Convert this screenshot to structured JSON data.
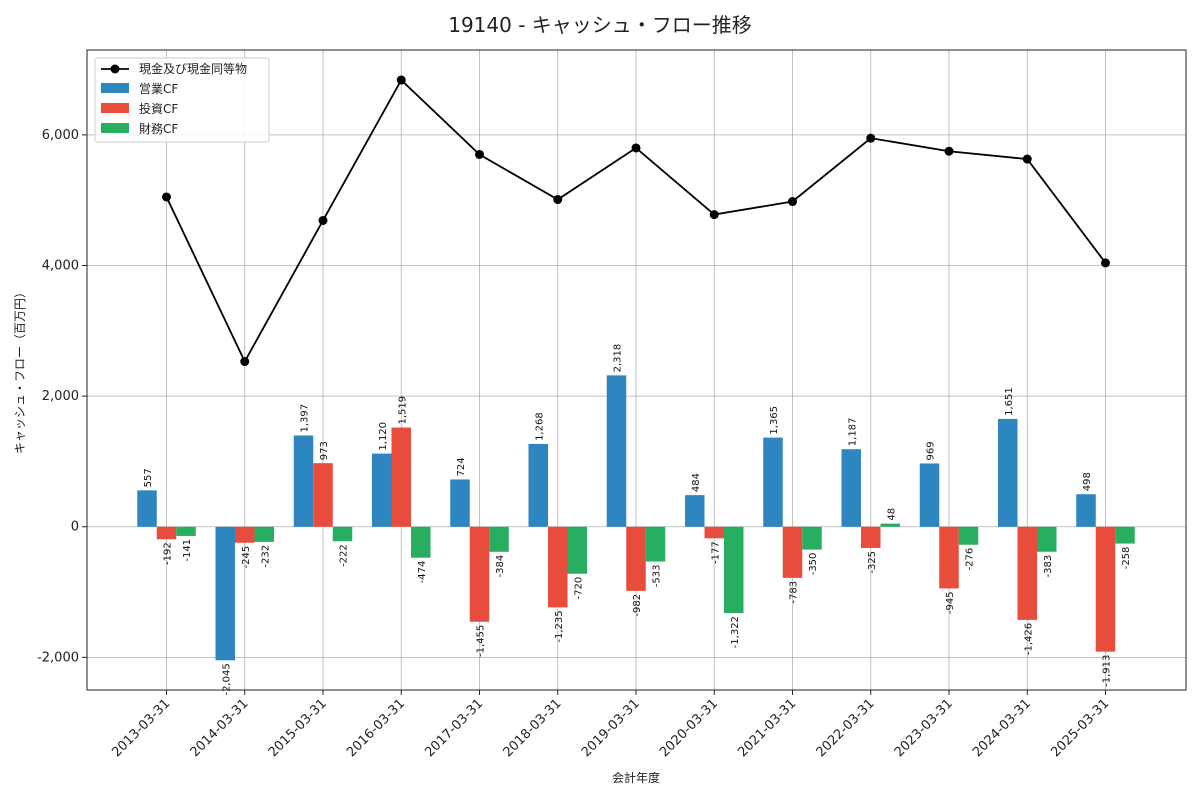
{
  "chart_data": {
    "type": "bar",
    "title": "19140 - キャッシュ・フロー推移",
    "xlabel": "会計年度",
    "ylabel": "キャッシュ・フロー（百万円）",
    "categories": [
      "2013-03-31",
      "2014-03-31",
      "2015-03-31",
      "2016-03-31",
      "2017-03-31",
      "2018-03-31",
      "2019-03-31",
      "2020-03-31",
      "2021-03-31",
      "2022-03-31",
      "2023-03-31",
      "2024-03-31",
      "2025-03-31"
    ],
    "ylim": [
      -2500,
      7300
    ],
    "yticks": [
      -2000,
      0,
      2000,
      4000,
      6000
    ],
    "ytick_labels": [
      "-2,000",
      "0",
      "2,000",
      "4,000",
      "6,000"
    ],
    "grid": true,
    "legend_position": "top-left",
    "bar_series": [
      {
        "name": "営業CF",
        "color": "#2e86c1",
        "values": [
          557,
          -2045,
          1397,
          1120,
          724,
          1268,
          2318,
          484,
          1365,
          1187,
          969,
          1651,
          498
        ],
        "labels": [
          "557",
          "-2,045",
          "1,397",
          "1,120",
          "724",
          "1,268",
          "2,318",
          "484",
          "1,365",
          "1,187",
          "969",
          "1,651",
          "498"
        ]
      },
      {
        "name": "投資CF",
        "color": "#e74c3c",
        "values": [
          -192,
          -245,
          973,
          1519,
          -1455,
          -1235,
          -982,
          -177,
          -783,
          -325,
          -945,
          -1426,
          -1913
        ],
        "labels": [
          "-192",
          "-245",
          "973",
          "1,519",
          "-1,455",
          "-1,235",
          "-982",
          "-177",
          "-783",
          "-325",
          "-945",
          "-1,426",
          "-1,913"
        ]
      },
      {
        "name": "財務CF",
        "color": "#27ae60",
        "values": [
          -141,
          -232,
          -222,
          -474,
          -384,
          -720,
          -533,
          -1322,
          -350,
          48,
          -276,
          -383,
          -258
        ],
        "labels": [
          "-141",
          "-232",
          "-222",
          "-474",
          "-384",
          "-720",
          "-533",
          "-1,322",
          "-350",
          "48",
          "-276",
          "-383",
          "-258"
        ]
      }
    ],
    "line_series": {
      "name": "現金及び現金同等物",
      "color": "#000000",
      "values": [
        5050,
        2530,
        4690,
        6840,
        5700,
        5010,
        5800,
        4780,
        4980,
        5950,
        5750,
        5630,
        4040
      ]
    }
  }
}
